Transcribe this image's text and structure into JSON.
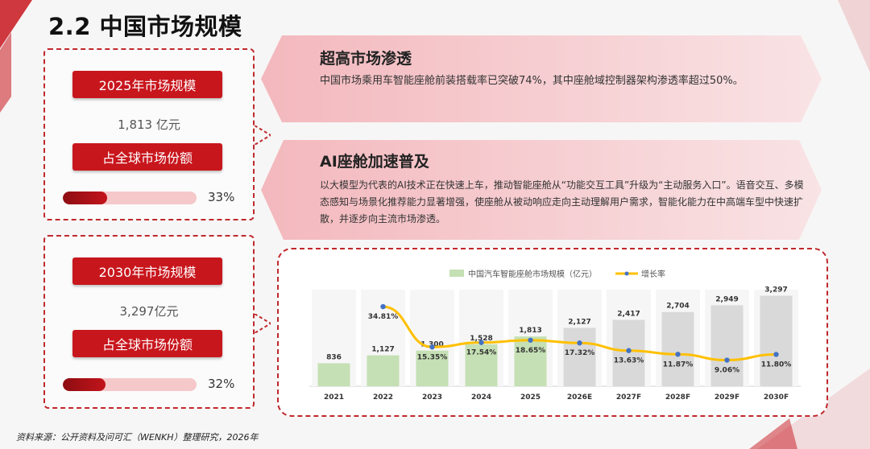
{
  "page": {
    "title": "2.2 中国市场规模"
  },
  "stat_2025": {
    "label": "2025年市场规模",
    "value": "1,813 亿元",
    "share_label": "占全球市场份额",
    "share_text": "33%",
    "share_value": 33
  },
  "stat_2030": {
    "label": "2030年市场规模",
    "value": "3,297亿元",
    "share_label": "占全球市场份额",
    "share_text": "32%",
    "share_value": 32
  },
  "banner1": {
    "title": "超高市场渗透",
    "text": "中国市场乘用车智能座舱前装搭载率已突破74%，其中座舱域控制器架构渗透率超过50%。"
  },
  "banner2": {
    "title": "AI座舱加速普及",
    "text": "以大模型为代表的AI技术正在快速上车，推动智能座舱从“功能交互工具”升级为“主动服务入口”。语音交互、多模态感知与场景化推荐能力显著增强，使座舱从被动响应走向主动理解用户需求，智能化能力在中高端车型中快速扩散，并逐步向主流市场渗透。"
  },
  "colors": {
    "accent_red": "#c8161d",
    "bar_actual": "#c5e0b4",
    "bar_forecast": "#d9d9d9",
    "growth_line": "#ffc000",
    "growth_marker": "#4472c4"
  },
  "chart_data": {
    "type": "bar",
    "categories": [
      "2021",
      "2022",
      "2023",
      "2024",
      "2025",
      "2026E",
      "2027F",
      "2028F",
      "2029F",
      "2030F"
    ],
    "series": [
      {
        "name": "中国汽车智能座舱市场规模（亿元）",
        "values": [
          836,
          1127,
          1300,
          1528,
          1813,
          2127,
          2417,
          2704,
          2949,
          3297
        ],
        "labels": [
          "836",
          "1,127",
          "1,300",
          "1,528",
          "1,813",
          "2,127",
          "2,417",
          "2,704",
          "2,949",
          "3,297"
        ]
      },
      {
        "name": "增长率",
        "type": "line",
        "values": [
          null,
          34.81,
          15.35,
          17.54,
          18.65,
          17.32,
          13.63,
          11.87,
          9.06,
          11.8
        ],
        "labels": [
          "",
          "34.81%",
          "15.35%",
          "17.54%",
          "18.65%",
          "17.32%",
          "13.63%",
          "11.87%",
          "9.06%",
          "11.80%"
        ]
      }
    ],
    "actual_count": 5,
    "legend_position": "top-center"
  },
  "source": "资料来源：公开资料及问可汇（WENKH）整理研究，2026年"
}
